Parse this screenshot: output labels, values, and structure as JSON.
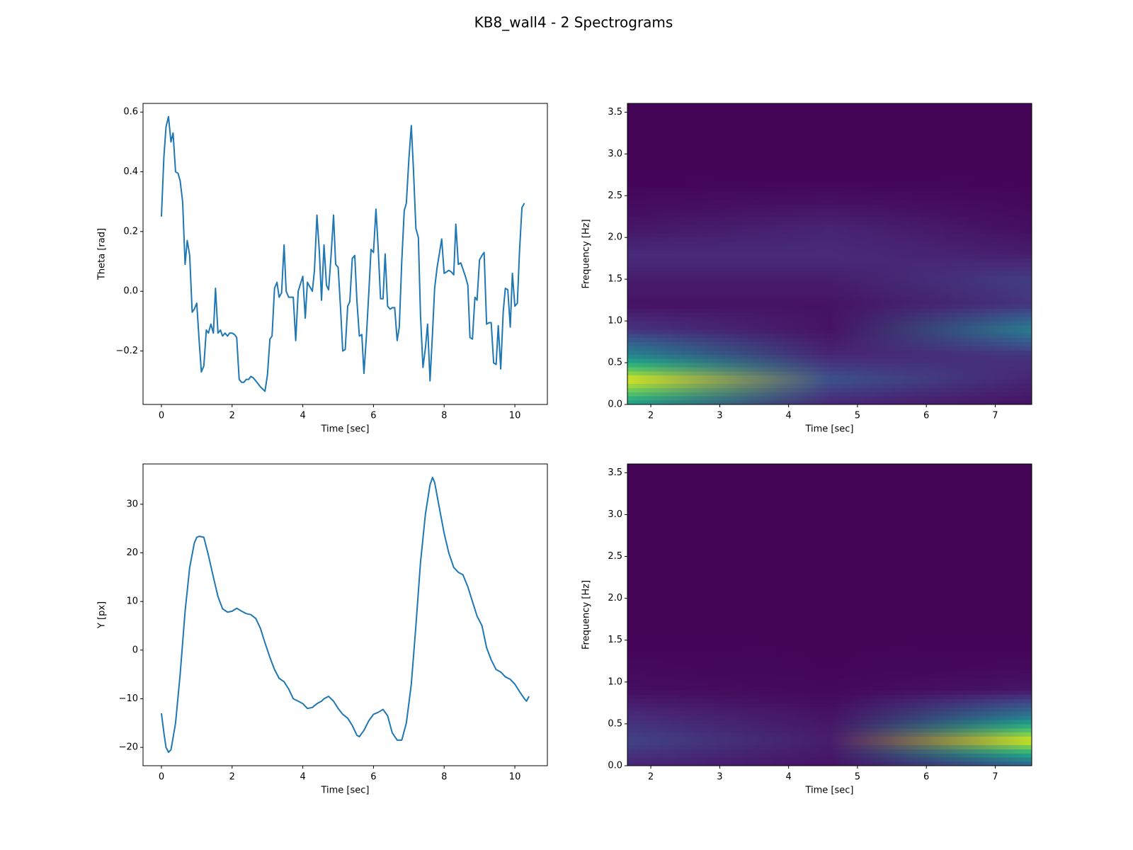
{
  "title": "KB8_wall4 - 2 Spectrograms",
  "chart_data": [
    {
      "type": "line",
      "xlabel": "Time [sec]",
      "ylabel": "Theta [rad]",
      "color": "#1f77b4",
      "xlim": [
        -0.52,
        10.92
      ],
      "ylim": [
        -0.379,
        0.629
      ],
      "xticks": [
        0,
        2,
        4,
        6,
        8,
        10
      ],
      "yticks": [
        {
          "value": -0.2,
          "label": "−0.2"
        },
        {
          "value": 0,
          "label": "0.0"
        },
        {
          "value": 0.2,
          "label": "0.2"
        },
        {
          "value": 0.4,
          "label": "0.4"
        },
        {
          "value": 0.6,
          "label": "0.6"
        }
      ],
      "x": [
        0,
        0.07,
        0.13,
        0.2,
        0.27,
        0.33,
        0.4,
        0.47,
        0.53,
        0.6,
        0.67,
        0.73,
        0.8,
        0.87,
        0.93,
        1.0,
        1.07,
        1.13,
        1.2,
        1.27,
        1.33,
        1.4,
        1.47,
        1.53,
        1.6,
        1.67,
        1.73,
        1.8,
        1.87,
        1.93,
        2.0,
        2.07,
        2.13,
        2.2,
        2.27,
        2.33,
        2.4,
        2.47,
        2.53,
        2.6,
        2.67,
        2.8,
        2.93,
        3.0,
        3.07,
        3.13,
        3.2,
        3.27,
        3.33,
        3.4,
        3.47,
        3.53,
        3.6,
        3.73,
        3.8,
        3.87,
        4.0,
        4.07,
        4.13,
        4.27,
        4.33,
        4.4,
        4.47,
        4.53,
        4.6,
        4.67,
        4.73,
        4.8,
        4.87,
        4.93,
        5.0,
        5.07,
        5.13,
        5.2,
        5.27,
        5.33,
        5.4,
        5.47,
        5.53,
        5.6,
        5.67,
        5.73,
        5.8,
        5.87,
        5.93,
        6.0,
        6.07,
        6.13,
        6.2,
        6.27,
        6.33,
        6.4,
        6.47,
        6.53,
        6.6,
        6.67,
        6.73,
        6.8,
        6.87,
        6.93,
        7.0,
        7.07,
        7.13,
        7.2,
        7.27,
        7.33,
        7.4,
        7.47,
        7.53,
        7.6,
        7.67,
        7.73,
        7.8,
        7.87,
        7.93,
        8.0,
        8.07,
        8.13,
        8.2,
        8.27,
        8.33,
        8.4,
        8.47,
        8.53,
        8.6,
        8.67,
        8.73,
        8.8,
        8.87,
        8.93,
        9.0,
        9.07,
        9.13,
        9.2,
        9.27,
        9.33,
        9.4,
        9.47,
        9.53,
        9.6,
        9.67,
        9.73,
        9.8,
        9.87,
        9.93,
        10.0,
        10.07,
        10.13,
        10.2,
        10.27
      ],
      "values": [
        0.25,
        0.45,
        0.55,
        0.585,
        0.5,
        0.53,
        0.4,
        0.395,
        0.37,
        0.3,
        0.09,
        0.17,
        0.12,
        -0.07,
        -0.06,
        -0.04,
        -0.17,
        -0.27,
        -0.25,
        -0.13,
        -0.14,
        -0.11,
        -0.14,
        0.01,
        -0.14,
        -0.13,
        -0.15,
        -0.14,
        -0.15,
        -0.14,
        -0.14,
        -0.145,
        -0.155,
        -0.295,
        -0.305,
        -0.305,
        -0.295,
        -0.295,
        -0.285,
        -0.29,
        -0.3,
        -0.32,
        -0.335,
        -0.28,
        -0.16,
        -0.15,
        0.01,
        0.03,
        -0.02,
        -0.005,
        0.155,
        0.0,
        -0.02,
        -0.02,
        -0.165,
        0.0,
        0.05,
        -0.09,
        0.03,
        0.0,
        0.07,
        0.255,
        0.13,
        -0.03,
        0.155,
        0.02,
        0.005,
        0.12,
        0.255,
        0.09,
        0.08,
        -0.06,
        -0.2,
        -0.195,
        -0.05,
        -0.035,
        0.11,
        0.12,
        -0.03,
        -0.15,
        -0.145,
        -0.275,
        -0.15,
        0.0,
        0.14,
        0.13,
        0.275,
        0.15,
        -0.025,
        -0.025,
        0.125,
        -0.05,
        -0.06,
        -0.055,
        -0.055,
        -0.165,
        -0.12,
        0.1,
        0.27,
        0.295,
        0.44,
        0.555,
        0.41,
        0.21,
        0.18,
        -0.08,
        -0.255,
        -0.19,
        -0.11,
        -0.3,
        -0.14,
        0.01,
        0.08,
        0.13,
        0.175,
        0.06,
        0.065,
        0.07,
        0.065,
        0.055,
        0.225,
        0.09,
        0.095,
        0.075,
        0.05,
        0.02,
        -0.155,
        -0.16,
        -0.02,
        -0.03,
        0.105,
        0.12,
        0.13,
        -0.11,
        -0.105,
        -0.105,
        -0.24,
        -0.245,
        -0.115,
        -0.26,
        -0.07,
        0.01,
        0.005,
        -0.12,
        0.06,
        -0.05,
        -0.04,
        0.13,
        0.28,
        0.295
      ]
    },
    {
      "type": "heatmap",
      "xlabel": "Time [sec]",
      "ylabel": "Frequency [Hz]",
      "colormap": "viridis",
      "xlim": [
        1.66,
        7.53
      ],
      "ylim": [
        0,
        3.605
      ],
      "xticks": [
        2,
        3,
        4,
        5,
        6,
        7
      ],
      "yticks": [
        {
          "value": 0,
          "label": "0.0"
        },
        {
          "value": 0.5,
          "label": "0.5"
        },
        {
          "value": 1,
          "label": "1.0"
        },
        {
          "value": 1.5,
          "label": "1.5"
        },
        {
          "value": 2,
          "label": "2.0"
        },
        {
          "value": 2.5,
          "label": "2.5"
        },
        {
          "value": 3,
          "label": "3.0"
        },
        {
          "value": 3.5,
          "label": "3.5"
        }
      ],
      "x": [
        1.66,
        4.6,
        7.53
      ],
      "y": [
        0,
        0.3,
        0.6,
        0.9,
        1.2,
        1.5,
        1.8,
        2.1,
        2.4,
        2.7,
        3.0,
        3.3,
        3.6
      ],
      "values": [
        [
          0.55,
          0.1,
          0.05
        ],
        [
          0.95,
          0.25,
          0.1
        ],
        [
          0.45,
          0.1,
          0.15
        ],
        [
          0.15,
          0.05,
          0.42
        ],
        [
          0.05,
          0.05,
          0.15
        ],
        [
          0.08,
          0.08,
          0.18
        ],
        [
          0.12,
          0.12,
          0.08
        ],
        [
          0.06,
          0.1,
          0.04
        ],
        [
          0.03,
          0.05,
          0.02
        ],
        [
          0.01,
          0.01,
          0.01
        ],
        [
          0.01,
          0.01,
          0.01
        ],
        [
          0.01,
          0.01,
          0.01
        ],
        [
          0.01,
          0.01,
          0.01
        ]
      ]
    },
    {
      "type": "line",
      "xlabel": "Time [sec]",
      "ylabel": "Y [px]",
      "color": "#1f77b4",
      "xlim": [
        -0.52,
        10.92
      ],
      "ylim": [
        -23.77,
        38.28
      ],
      "xticks": [
        0,
        2,
        4,
        6,
        8,
        10
      ],
      "yticks": [
        {
          "value": -20,
          "label": "−20"
        },
        {
          "value": -10,
          "label": "−10"
        },
        0,
        10,
        20,
        30
      ],
      "x": [
        0,
        0.07,
        0.13,
        0.2,
        0.27,
        0.33,
        0.4,
        0.53,
        0.67,
        0.8,
        0.93,
        1.0,
        1.07,
        1.2,
        1.33,
        1.47,
        1.6,
        1.73,
        1.87,
        2.0,
        2.13,
        2.27,
        2.4,
        2.53,
        2.67,
        2.8,
        2.93,
        3.07,
        3.2,
        3.33,
        3.47,
        3.6,
        3.73,
        3.87,
        4.0,
        4.13,
        4.27,
        4.4,
        4.53,
        4.6,
        4.73,
        4.87,
        5.0,
        5.13,
        5.27,
        5.4,
        5.53,
        5.6,
        5.73,
        5.87,
        6.0,
        6.13,
        6.27,
        6.4,
        6.53,
        6.67,
        6.8,
        6.93,
        7.07,
        7.2,
        7.33,
        7.47,
        7.6,
        7.67,
        7.73,
        7.87,
        8.0,
        8.13,
        8.27,
        8.4,
        8.53,
        8.67,
        8.8,
        8.93,
        9.07,
        9.2,
        9.33,
        9.47,
        9.6,
        9.73,
        9.87,
        10.0,
        10.13,
        10.27,
        10.33,
        10.4
      ],
      "values": [
        -13,
        -17,
        -20,
        -21,
        -20.5,
        -18,
        -15,
        -5,
        8,
        17,
        22,
        23.2,
        23.4,
        23.2,
        19.5,
        15,
        11,
        8.5,
        7.8,
        8,
        8.6,
        8,
        7.5,
        7.3,
        6.5,
        4.5,
        1.5,
        -1.5,
        -4,
        -5.8,
        -6.5,
        -8,
        -10,
        -10.5,
        -11,
        -12,
        -11.8,
        -11,
        -10.5,
        -10,
        -9.5,
        -10.5,
        -12,
        -13.2,
        -14,
        -15.5,
        -17.5,
        -17.8,
        -16.5,
        -14.5,
        -13.2,
        -12.8,
        -12.2,
        -13.5,
        -17,
        -18.5,
        -18.5,
        -15,
        -7,
        5,
        18,
        28,
        34,
        35.5,
        34.5,
        29,
        24,
        20,
        17,
        16,
        15.5,
        13,
        10,
        7,
        5,
        0.5,
        -2,
        -4,
        -4.5,
        -5.5,
        -6,
        -7,
        -8.5,
        -10,
        -10.5,
        -9.5
      ]
    },
    {
      "type": "heatmap",
      "xlabel": "Time [sec]",
      "ylabel": "Frequency [Hz]",
      "colormap": "viridis",
      "xlim": [
        1.66,
        7.53
      ],
      "ylim": [
        0,
        3.605
      ],
      "xticks": [
        2,
        3,
        4,
        5,
        6,
        7
      ],
      "yticks": [
        {
          "value": 0,
          "label": "0.0"
        },
        {
          "value": 0.5,
          "label": "0.5"
        },
        {
          "value": 1,
          "label": "1.0"
        },
        {
          "value": 1.5,
          "label": "1.5"
        },
        {
          "value": 2,
          "label": "2.0"
        },
        {
          "value": 2.5,
          "label": "2.5"
        },
        {
          "value": 3,
          "label": "3.0"
        },
        {
          "value": 3.5,
          "label": "3.5"
        }
      ],
      "x": [
        1.66,
        4.6,
        7.53
      ],
      "y": [
        0,
        0.3,
        0.6,
        0.9,
        1.2,
        1.5,
        1.8,
        2.1,
        2.4,
        2.7,
        3.0,
        3.3,
        3.6
      ],
      "values": [
        [
          0.1,
          0.05,
          0.3
        ],
        [
          0.2,
          0.08,
          0.95
        ],
        [
          0.12,
          0.05,
          0.4
        ],
        [
          0.04,
          0.02,
          0.06
        ],
        [
          0.02,
          0.01,
          0.02
        ],
        [
          0.01,
          0.01,
          0.01
        ],
        [
          0.01,
          0.01,
          0.01
        ],
        [
          0.01,
          0.01,
          0.01
        ],
        [
          0.01,
          0.01,
          0.01
        ],
        [
          0.01,
          0.01,
          0.01
        ],
        [
          0.01,
          0.01,
          0.01
        ],
        [
          0.01,
          0.01,
          0.01
        ],
        [
          0.01,
          0.01,
          0.01
        ]
      ]
    }
  ]
}
